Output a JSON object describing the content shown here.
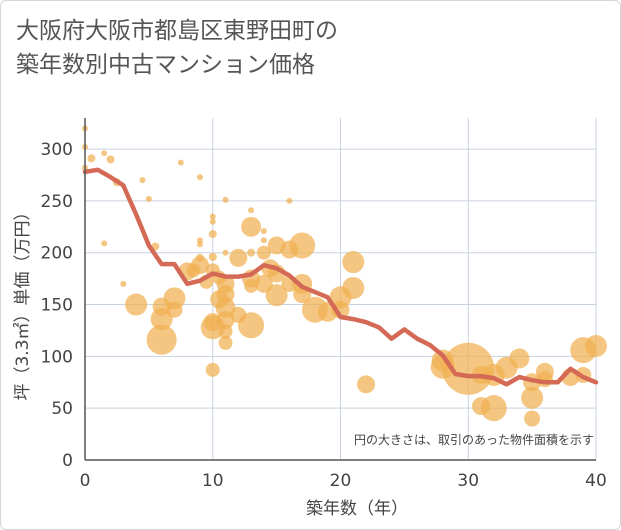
{
  "title_lines": [
    "大阪府大阪市都島区東野田町の",
    "築年数別中古マンション価格"
  ],
  "chart_data": {
    "type": "scatter",
    "xlabel": "築年数（年）",
    "ylabel": "坪（3.3㎡）単価（万円）",
    "xlim": [
      0,
      40
    ],
    "ylim": [
      0,
      330
    ],
    "x_ticks": [
      0,
      10,
      20,
      30,
      40
    ],
    "y_ticks": [
      0,
      50,
      100,
      150,
      200,
      250,
      300
    ],
    "grid": true,
    "note": "円の大きさは、取引のあった物件面積を示す",
    "colors": {
      "bubble": "#f0b050",
      "line": "#d46a55",
      "grid": "#c9d3df",
      "axis": "#555555"
    },
    "series": [
      {
        "kind": "bubbles",
        "points": [
          {
            "x": 0,
            "y": 320,
            "s": 3
          },
          {
            "x": 0,
            "y": 302,
            "s": 3
          },
          {
            "x": 0,
            "y": 282,
            "s": 3
          },
          {
            "x": 0.5,
            "y": 291,
            "s": 4
          },
          {
            "x": 1.5,
            "y": 296,
            "s": 3
          },
          {
            "x": 1.5,
            "y": 209,
            "s": 3
          },
          {
            "x": 2,
            "y": 290,
            "s": 4
          },
          {
            "x": 2.5,
            "y": 268,
            "s": 4
          },
          {
            "x": 3,
            "y": 170,
            "s": 3
          },
          {
            "x": 4,
            "y": 150,
            "s": 11
          },
          {
            "x": 4.5,
            "y": 270,
            "s": 3
          },
          {
            "x": 5,
            "y": 252,
            "s": 3
          },
          {
            "x": 5.5,
            "y": 206,
            "s": 4
          },
          {
            "x": 6,
            "y": 148,
            "s": 9
          },
          {
            "x": 6,
            "y": 136,
            "s": 11
          },
          {
            "x": 6,
            "y": 116,
            "s": 15
          },
          {
            "x": 7,
            "y": 156,
            "s": 11
          },
          {
            "x": 7,
            "y": 145,
            "s": 8
          },
          {
            "x": 7.5,
            "y": 287,
            "s": 3
          },
          {
            "x": 8,
            "y": 182,
            "s": 9
          },
          {
            "x": 8.5,
            "y": 183,
            "s": 7
          },
          {
            "x": 9,
            "y": 273,
            "s": 3
          },
          {
            "x": 9,
            "y": 212,
            "s": 3
          },
          {
            "x": 9,
            "y": 208,
            "s": 3
          },
          {
            "x": 9,
            "y": 195,
            "s": 4
          },
          {
            "x": 9,
            "y": 188,
            "s": 9
          },
          {
            "x": 9.5,
            "y": 172,
            "s": 7
          },
          {
            "x": 10,
            "y": 235,
            "s": 3
          },
          {
            "x": 10,
            "y": 230,
            "s": 3
          },
          {
            "x": 10,
            "y": 218,
            "s": 4
          },
          {
            "x": 10,
            "y": 196,
            "s": 4
          },
          {
            "x": 10,
            "y": 183,
            "s": 7
          },
          {
            "x": 10,
            "y": 133,
            "s": 9
          },
          {
            "x": 10,
            "y": 128,
            "s": 12
          },
          {
            "x": 10,
            "y": 87,
            "s": 7
          },
          {
            "x": 10.5,
            "y": 176,
            "s": 7
          },
          {
            "x": 10.5,
            "y": 155,
            "s": 9
          },
          {
            "x": 11,
            "y": 251,
            "s": 3
          },
          {
            "x": 11,
            "y": 200,
            "s": 3
          },
          {
            "x": 11,
            "y": 170,
            "s": 9
          },
          {
            "x": 11,
            "y": 160,
            "s": 9
          },
          {
            "x": 11,
            "y": 147,
            "s": 10
          },
          {
            "x": 11,
            "y": 135,
            "s": 9
          },
          {
            "x": 11,
            "y": 124,
            "s": 7
          },
          {
            "x": 11,
            "y": 113,
            "s": 7
          },
          {
            "x": 12,
            "y": 195,
            "s": 9
          },
          {
            "x": 12,
            "y": 140,
            "s": 8
          },
          {
            "x": 13,
            "y": 241,
            "s": 3
          },
          {
            "x": 13,
            "y": 225,
            "s": 10
          },
          {
            "x": 13,
            "y": 200,
            "s": 4
          },
          {
            "x": 13,
            "y": 175,
            "s": 9
          },
          {
            "x": 13,
            "y": 168,
            "s": 7
          },
          {
            "x": 13,
            "y": 130,
            "s": 13
          },
          {
            "x": 14,
            "y": 221,
            "s": 3
          },
          {
            "x": 14,
            "y": 212,
            "s": 3
          },
          {
            "x": 14,
            "y": 200,
            "s": 7
          },
          {
            "x": 14,
            "y": 170,
            "s": 9
          },
          {
            "x": 14.5,
            "y": 185,
            "s": 9
          },
          {
            "x": 15,
            "y": 207,
            "s": 9
          },
          {
            "x": 15,
            "y": 180,
            "s": 9
          },
          {
            "x": 15,
            "y": 159,
            "s": 11
          },
          {
            "x": 16,
            "y": 250,
            "s": 3
          },
          {
            "x": 16,
            "y": 203,
            "s": 9
          },
          {
            "x": 16,
            "y": 170,
            "s": 8
          },
          {
            "x": 17,
            "y": 207,
            "s": 13
          },
          {
            "x": 17,
            "y": 170,
            "s": 10
          },
          {
            "x": 17,
            "y": 160,
            "s": 9
          },
          {
            "x": 18,
            "y": 145,
            "s": 13
          },
          {
            "x": 19,
            "y": 143,
            "s": 10
          },
          {
            "x": 20,
            "y": 157,
            "s": 11
          },
          {
            "x": 20,
            "y": 145,
            "s": 9
          },
          {
            "x": 21,
            "y": 191,
            "s": 11
          },
          {
            "x": 21,
            "y": 166,
            "s": 11
          },
          {
            "x": 22,
            "y": 73,
            "s": 9
          },
          {
            "x": 28,
            "y": 96,
            "s": 11
          },
          {
            "x": 28,
            "y": 90,
            "s": 12
          },
          {
            "x": 30,
            "y": 88,
            "s": 26
          },
          {
            "x": 31,
            "y": 82,
            "s": 9
          },
          {
            "x": 31,
            "y": 52,
            "s": 9
          },
          {
            "x": 32,
            "y": 50,
            "s": 13
          },
          {
            "x": 32,
            "y": 82,
            "s": 11
          },
          {
            "x": 33,
            "y": 89,
            "s": 11
          },
          {
            "x": 34,
            "y": 98,
            "s": 10
          },
          {
            "x": 35,
            "y": 75,
            "s": 9
          },
          {
            "x": 35,
            "y": 60,
            "s": 11
          },
          {
            "x": 35,
            "y": 40,
            "s": 8
          },
          {
            "x": 36,
            "y": 85,
            "s": 9
          },
          {
            "x": 36,
            "y": 78,
            "s": 8
          },
          {
            "x": 38,
            "y": 80,
            "s": 9
          },
          {
            "x": 39,
            "y": 106,
            "s": 13
          },
          {
            "x": 39,
            "y": 82,
            "s": 8
          },
          {
            "x": 40,
            "y": 110,
            "s": 11
          }
        ]
      },
      {
        "kind": "line",
        "points": [
          {
            "x": 0,
            "y": 278
          },
          {
            "x": 1,
            "y": 280
          },
          {
            "x": 2,
            "y": 273
          },
          {
            "x": 3,
            "y": 265
          },
          {
            "x": 4,
            "y": 237
          },
          {
            "x": 5,
            "y": 207
          },
          {
            "x": 6,
            "y": 189
          },
          {
            "x": 7,
            "y": 189
          },
          {
            "x": 8,
            "y": 170
          },
          {
            "x": 9,
            "y": 173
          },
          {
            "x": 10,
            "y": 180
          },
          {
            "x": 11,
            "y": 177
          },
          {
            "x": 12,
            "y": 177
          },
          {
            "x": 13,
            "y": 179
          },
          {
            "x": 14,
            "y": 188
          },
          {
            "x": 15,
            "y": 185
          },
          {
            "x": 16,
            "y": 178
          },
          {
            "x": 17,
            "y": 167
          },
          {
            "x": 18,
            "y": 162
          },
          {
            "x": 19,
            "y": 157
          },
          {
            "x": 20,
            "y": 138
          },
          {
            "x": 21,
            "y": 136
          },
          {
            "x": 22,
            "y": 133
          },
          {
            "x": 23,
            "y": 128
          },
          {
            "x": 24,
            "y": 117
          },
          {
            "x": 25,
            "y": 126
          },
          {
            "x": 26,
            "y": 117
          },
          {
            "x": 27,
            "y": 111
          },
          {
            "x": 28,
            "y": 101
          },
          {
            "x": 29,
            "y": 83
          },
          {
            "x": 30,
            "y": 81
          },
          {
            "x": 31,
            "y": 81
          },
          {
            "x": 32,
            "y": 79
          },
          {
            "x": 33,
            "y": 73
          },
          {
            "x": 34,
            "y": 80
          },
          {
            "x": 35,
            "y": 77
          },
          {
            "x": 36,
            "y": 75
          },
          {
            "x": 37,
            "y": 75
          },
          {
            "x": 38,
            "y": 88
          },
          {
            "x": 39,
            "y": 80
          },
          {
            "x": 40,
            "y": 75
          }
        ]
      }
    ]
  }
}
